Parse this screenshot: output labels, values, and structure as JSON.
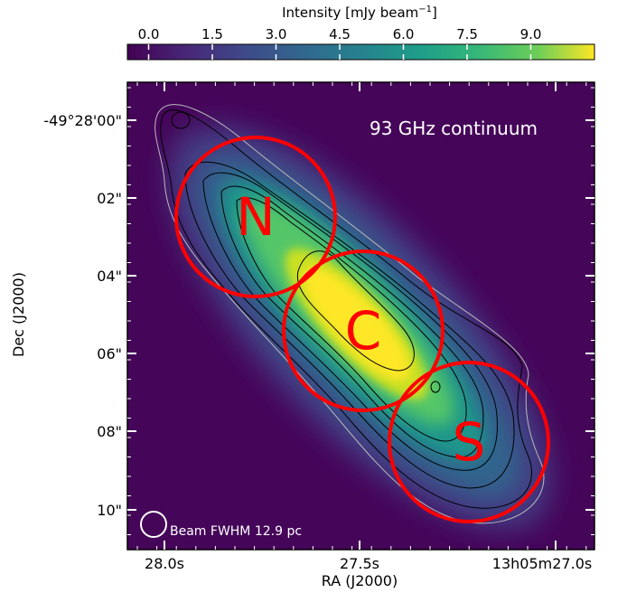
{
  "chart_data": {
    "type": "heatmap",
    "title": "",
    "colorbar": {
      "label_main": "Intensity [mJy beam",
      "label_exp": "−1",
      "label_close": "]",
      "ticks": [
        "0.0",
        "1.5",
        "3.0",
        "4.5",
        "6.0",
        "7.5",
        "9.0"
      ],
      "tick_values": [
        0.0,
        1.5,
        3.0,
        4.5,
        6.0,
        7.5,
        9.0
      ],
      "vmin": -0.5,
      "vmax": 10.5,
      "colormap": "viridis",
      "position": "top"
    },
    "xlabel": "RA (J2000)",
    "ylabel": "Dec (J2000)",
    "x_ticks": [
      "28.0s",
      "27.5s",
      "13h05m27.0s"
    ],
    "y_ticks": [
      "-49°28'00\"",
      "02\"",
      "04\"",
      "06\"",
      "08\"",
      "10\""
    ],
    "annotation": "93 GHz continuum",
    "beam_label": "Beam FWHM 12.9 pc",
    "regions": [
      {
        "label": "N",
        "color": "#ff0000"
      },
      {
        "label": "C",
        "color": "#ff0000"
      },
      {
        "label": "S",
        "color": "#ff0000"
      }
    ],
    "colors": {
      "background": "#440154",
      "contour": "#000000",
      "contour_outer": "#bbbbbb",
      "region": "#ff0000",
      "text_in_plot": "#ffffff"
    }
  }
}
